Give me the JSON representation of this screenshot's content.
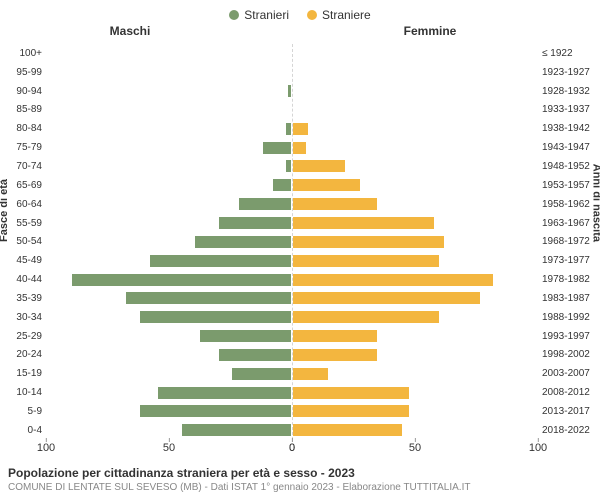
{
  "legend": {
    "male": {
      "label": "Stranieri",
      "color": "#7b9b6d"
    },
    "female": {
      "label": "Straniere",
      "color": "#f3b63f"
    }
  },
  "col_headers": {
    "left": "Maschi",
    "right": "Femmine"
  },
  "axis_titles": {
    "left": "Fasce di età",
    "right": "Anni di nascita"
  },
  "x_axis": {
    "min": 0,
    "max": 100,
    "ticks_left": [
      100,
      50,
      0
    ],
    "ticks_right": [
      0,
      50,
      100
    ]
  },
  "colors": {
    "male_bar": "#7b9b6d",
    "female_bar": "#f3b63f",
    "background": "#ffffff"
  },
  "rows": [
    {
      "age": "100+",
      "birth": "≤ 1922",
      "m": 0,
      "f": 0
    },
    {
      "age": "95-99",
      "birth": "1923-1927",
      "m": 0,
      "f": 0
    },
    {
      "age": "90-94",
      "birth": "1928-1932",
      "m": 2,
      "f": 1
    },
    {
      "age": "85-89",
      "birth": "1933-1937",
      "m": 0,
      "f": 1
    },
    {
      "age": "80-84",
      "birth": "1938-1942",
      "m": 3,
      "f": 7
    },
    {
      "age": "75-79",
      "birth": "1943-1947",
      "m": 12,
      "f": 6
    },
    {
      "age": "70-74",
      "birth": "1948-1952",
      "m": 3,
      "f": 22
    },
    {
      "age": "65-69",
      "birth": "1953-1957",
      "m": 8,
      "f": 28
    },
    {
      "age": "60-64",
      "birth": "1958-1962",
      "m": 22,
      "f": 35
    },
    {
      "age": "55-59",
      "birth": "1963-1967",
      "m": 30,
      "f": 58
    },
    {
      "age": "50-54",
      "birth": "1968-1972",
      "m": 40,
      "f": 62
    },
    {
      "age": "45-49",
      "birth": "1973-1977",
      "m": 58,
      "f": 60
    },
    {
      "age": "40-44",
      "birth": "1978-1982",
      "m": 90,
      "f": 82
    },
    {
      "age": "35-39",
      "birth": "1983-1987",
      "m": 68,
      "f": 77
    },
    {
      "age": "30-34",
      "birth": "1988-1992",
      "m": 62,
      "f": 60
    },
    {
      "age": "25-29",
      "birth": "1993-1997",
      "m": 38,
      "f": 35
    },
    {
      "age": "20-24",
      "birth": "1998-2002",
      "m": 30,
      "f": 35
    },
    {
      "age": "15-19",
      "birth": "2003-2007",
      "m": 25,
      "f": 15
    },
    {
      "age": "10-14",
      "birth": "2008-2012",
      "m": 55,
      "f": 48
    },
    {
      "age": "5-9",
      "birth": "2013-2017",
      "m": 62,
      "f": 48
    },
    {
      "age": "0-4",
      "birth": "2018-2022",
      "m": 45,
      "f": 45
    }
  ],
  "footer": {
    "title": "Popolazione per cittadinanza straniera per età e sesso - 2023",
    "sub": "COMUNE DI LENTATE SUL SEVESO (MB) - Dati ISTAT 1° gennaio 2023 - Elaborazione TUTTITALIA.IT"
  }
}
